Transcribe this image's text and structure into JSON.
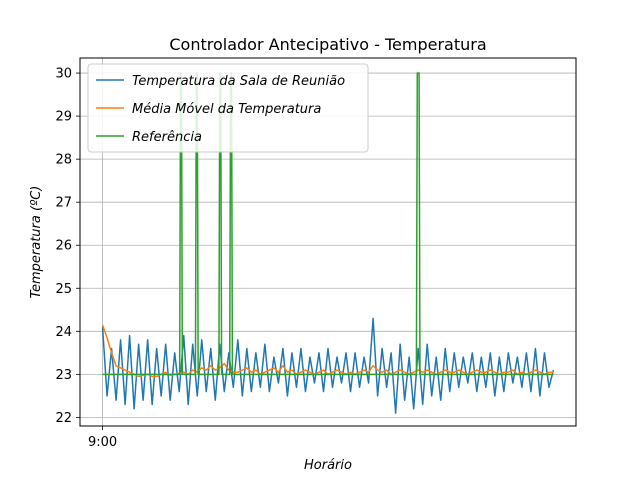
{
  "chart_data": {
    "type": "line",
    "title": "Controlador Antecipativo - Temperatura",
    "xlabel": "Horário",
    "ylabel": "Temperatura (ºC)",
    "x_tick_labels": [
      {
        "x": 0,
        "label": "9:00"
      }
    ],
    "xlim": [
      -5,
      105
    ],
    "ylim": [
      21.8,
      30.35
    ],
    "y_ticks": [
      22,
      23,
      24,
      25,
      26,
      27,
      28,
      29,
      30
    ],
    "grid": true,
    "legend_position": "top-left",
    "series": [
      {
        "name": "Temperatura da Sala de Reunião",
        "color": "#1f77b4",
        "x": [
          0,
          1,
          2,
          3,
          4,
          5,
          6,
          7,
          8,
          9,
          10,
          11,
          12,
          13,
          14,
          15,
          16,
          17,
          18,
          19,
          20,
          21,
          22,
          23,
          24,
          25,
          26,
          27,
          28,
          29,
          30,
          31,
          32,
          33,
          34,
          35,
          36,
          37,
          38,
          39,
          40,
          41,
          42,
          43,
          44,
          45,
          46,
          47,
          48,
          49,
          50,
          51,
          52,
          53,
          54,
          55,
          56,
          57,
          58,
          59,
          60,
          61,
          62,
          63,
          64,
          65,
          66,
          67,
          68,
          69,
          70,
          71,
          72,
          73,
          74,
          75,
          76,
          77,
          78,
          79,
          80,
          81,
          82,
          83,
          84,
          85,
          86,
          87,
          88,
          89,
          90,
          91,
          92,
          93,
          94,
          95,
          96,
          97,
          98,
          99,
          100
        ],
        "y": [
          24.1,
          22.5,
          23.6,
          22.4,
          23.8,
          22.3,
          23.9,
          22.2,
          23.7,
          22.4,
          23.8,
          22.3,
          23.6,
          22.5,
          23.7,
          22.4,
          23.5,
          22.6,
          23.9,
          22.3,
          23.7,
          22.5,
          23.8,
          22.6,
          23.6,
          22.4,
          23.7,
          22.6,
          23.5,
          22.7,
          23.8,
          22.5,
          23.6,
          22.6,
          23.5,
          22.7,
          23.7,
          22.6,
          23.4,
          22.8,
          23.6,
          22.5,
          23.5,
          22.7,
          23.6,
          22.6,
          23.4,
          22.8,
          23.5,
          22.6,
          23.6,
          22.7,
          23.4,
          22.8,
          23.5,
          22.6,
          23.5,
          22.7,
          23.4,
          22.8,
          24.3,
          22.5,
          23.6,
          22.7,
          23.5,
          22.1,
          23.7,
          22.4,
          23.4,
          22.2,
          23.6,
          22.3,
          23.7,
          22.5,
          23.4,
          22.4,
          23.6,
          22.6,
          23.5,
          22.7,
          23.4,
          22.8,
          23.5,
          22.6,
          23.4,
          22.7,
          23.5,
          22.5,
          23.4,
          22.6,
          23.5,
          22.8,
          23.4,
          22.7,
          23.5,
          22.6,
          23.6,
          22.5,
          23.5,
          22.7,
          23.1
        ]
      },
      {
        "name": "Média Móvel da Temperatura",
        "color": "#ff7f0e",
        "x": [
          0,
          1,
          2,
          3,
          4,
          5,
          6,
          7,
          8,
          9,
          10,
          11,
          12,
          13,
          14,
          15,
          16,
          17,
          18,
          19,
          20,
          21,
          22,
          23,
          24,
          25,
          26,
          27,
          28,
          29,
          30,
          31,
          32,
          33,
          34,
          35,
          36,
          37,
          38,
          39,
          40,
          41,
          42,
          43,
          44,
          45,
          46,
          47,
          48,
          49,
          50,
          51,
          52,
          53,
          54,
          55,
          56,
          57,
          58,
          59,
          60,
          61,
          62,
          63,
          64,
          65,
          66,
          67,
          68,
          69,
          70,
          71,
          72,
          73,
          74,
          75,
          76,
          77,
          78,
          79,
          80,
          81,
          82,
          83,
          84,
          85,
          86,
          87,
          88,
          89,
          90,
          91,
          92,
          93,
          94,
          95,
          96,
          97,
          98,
          99,
          100
        ],
        "y": [
          24.15,
          23.85,
          23.5,
          23.2,
          23.15,
          23.1,
          23.05,
          23.0,
          22.95,
          22.98,
          23.0,
          22.95,
          22.95,
          23.0,
          23.05,
          22.98,
          23.0,
          23.02,
          23.05,
          23.0,
          23.1,
          23.05,
          23.15,
          23.1,
          23.2,
          23.1,
          23.15,
          23.25,
          23.1,
          23.05,
          23.05,
          23.1,
          23.15,
          23.05,
          23.1,
          23.0,
          23.05,
          23.1,
          23.15,
          23.05,
          23.2,
          23.05,
          23.1,
          23.0,
          23.05,
          23.1,
          23.05,
          23.0,
          23.05,
          23.1,
          23.0,
          23.05,
          23.1,
          23.05,
          23.0,
          23.05,
          23.0,
          23.05,
          23.1,
          23.05,
          23.2,
          23.1,
          23.05,
          23.1,
          23.0,
          23.05,
          23.1,
          23.05,
          23.0,
          23.05,
          23.1,
          23.05,
          23.1,
          23.05,
          23.0,
          23.05,
          23.1,
          23.05,
          23.05,
          23.1,
          23.05,
          23.0,
          23.05,
          23.1,
          23.05,
          23.05,
          23.1,
          23.05,
          23.0,
          23.05,
          23.05,
          23.1,
          23.0,
          23.05,
          23.0,
          23.05,
          23.1,
          23.05,
          23.0,
          23.05,
          23.05
        ]
      },
      {
        "name": "Referência",
        "color": "#2ca02c",
        "x": [
          0,
          17.1,
          17.3,
          17.5,
          17.7,
          20.6,
          20.8,
          21.0,
          21.2,
          25.8,
          26.0,
          26.2,
          26.4,
          28.2,
          28.4,
          28.6,
          28.8,
          69.6,
          69.8,
          70.2,
          70.4,
          100
        ],
        "y": [
          23,
          23,
          30,
          30,
          23,
          23,
          30,
          30,
          23,
          23,
          30,
          30,
          23,
          23,
          30,
          30,
          23,
          23,
          30,
          30,
          23,
          23
        ]
      }
    ]
  }
}
